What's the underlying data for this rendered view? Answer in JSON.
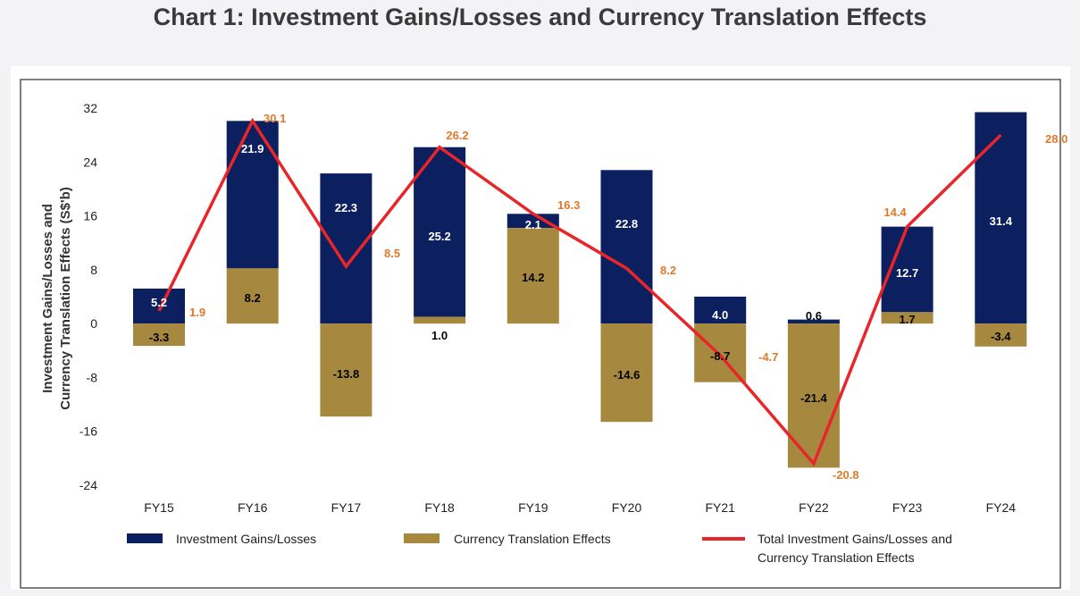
{
  "page_title": "Chart 1: Investment Gains/Losses and Currency Translation Effects",
  "colors": {
    "investment": "#0c1f5e",
    "currency": "#a6893f",
    "total": "#e8262a",
    "total_label": "#e0792b"
  },
  "chart_data": {
    "type": "bar",
    "stacked": true,
    "categories": [
      "FY15",
      "FY16",
      "FY17",
      "FY18",
      "FY19",
      "FY20",
      "FY21",
      "FY22",
      "FY23",
      "FY24"
    ],
    "ylabel_lines": [
      "Investment Gains/Losses and",
      "Currency Translation Effects (S$'b)"
    ],
    "ylim": [
      -24,
      32
    ],
    "yticks": [
      32,
      24,
      16,
      8,
      0,
      -8,
      -16,
      -24
    ],
    "series": [
      {
        "name": "Investment Gains/Losses",
        "type": "bar",
        "values": [
          5.2,
          21.9,
          22.3,
          25.2,
          2.1,
          22.8,
          4.0,
          0.6,
          12.7,
          31.4
        ],
        "labels": [
          "5.2",
          "21.9",
          "22.3",
          "25.2",
          "2.1",
          "22.8",
          "4.0",
          "0.6",
          "12.7",
          "31.4"
        ]
      },
      {
        "name": "Currency Translation Effects",
        "type": "bar",
        "values": [
          -3.3,
          8.2,
          -13.8,
          1.0,
          14.2,
          -14.6,
          -8.7,
          -21.4,
          1.7,
          -3.4
        ],
        "labels": [
          "-3.3",
          "8.2",
          "-13.8",
          "1.0",
          "14.2",
          "-14.6",
          "-8.7",
          "-21.4",
          "1.7",
          "-3.4"
        ]
      },
      {
        "name_lines": [
          "Total Investment Gains/Losses and",
          "Currency Translation Effects"
        ],
        "type": "line",
        "values": [
          1.9,
          30.1,
          8.5,
          26.2,
          16.3,
          8.2,
          -4.7,
          -20.8,
          14.4,
          28.0
        ],
        "labels": [
          "1.9",
          "30.1",
          "8.5",
          "26.2",
          "16.3",
          "8.2",
          "-4.7",
          "-20.8",
          "14.4",
          "28.0"
        ]
      }
    ],
    "grid": false,
    "legend_position": "bottom"
  }
}
